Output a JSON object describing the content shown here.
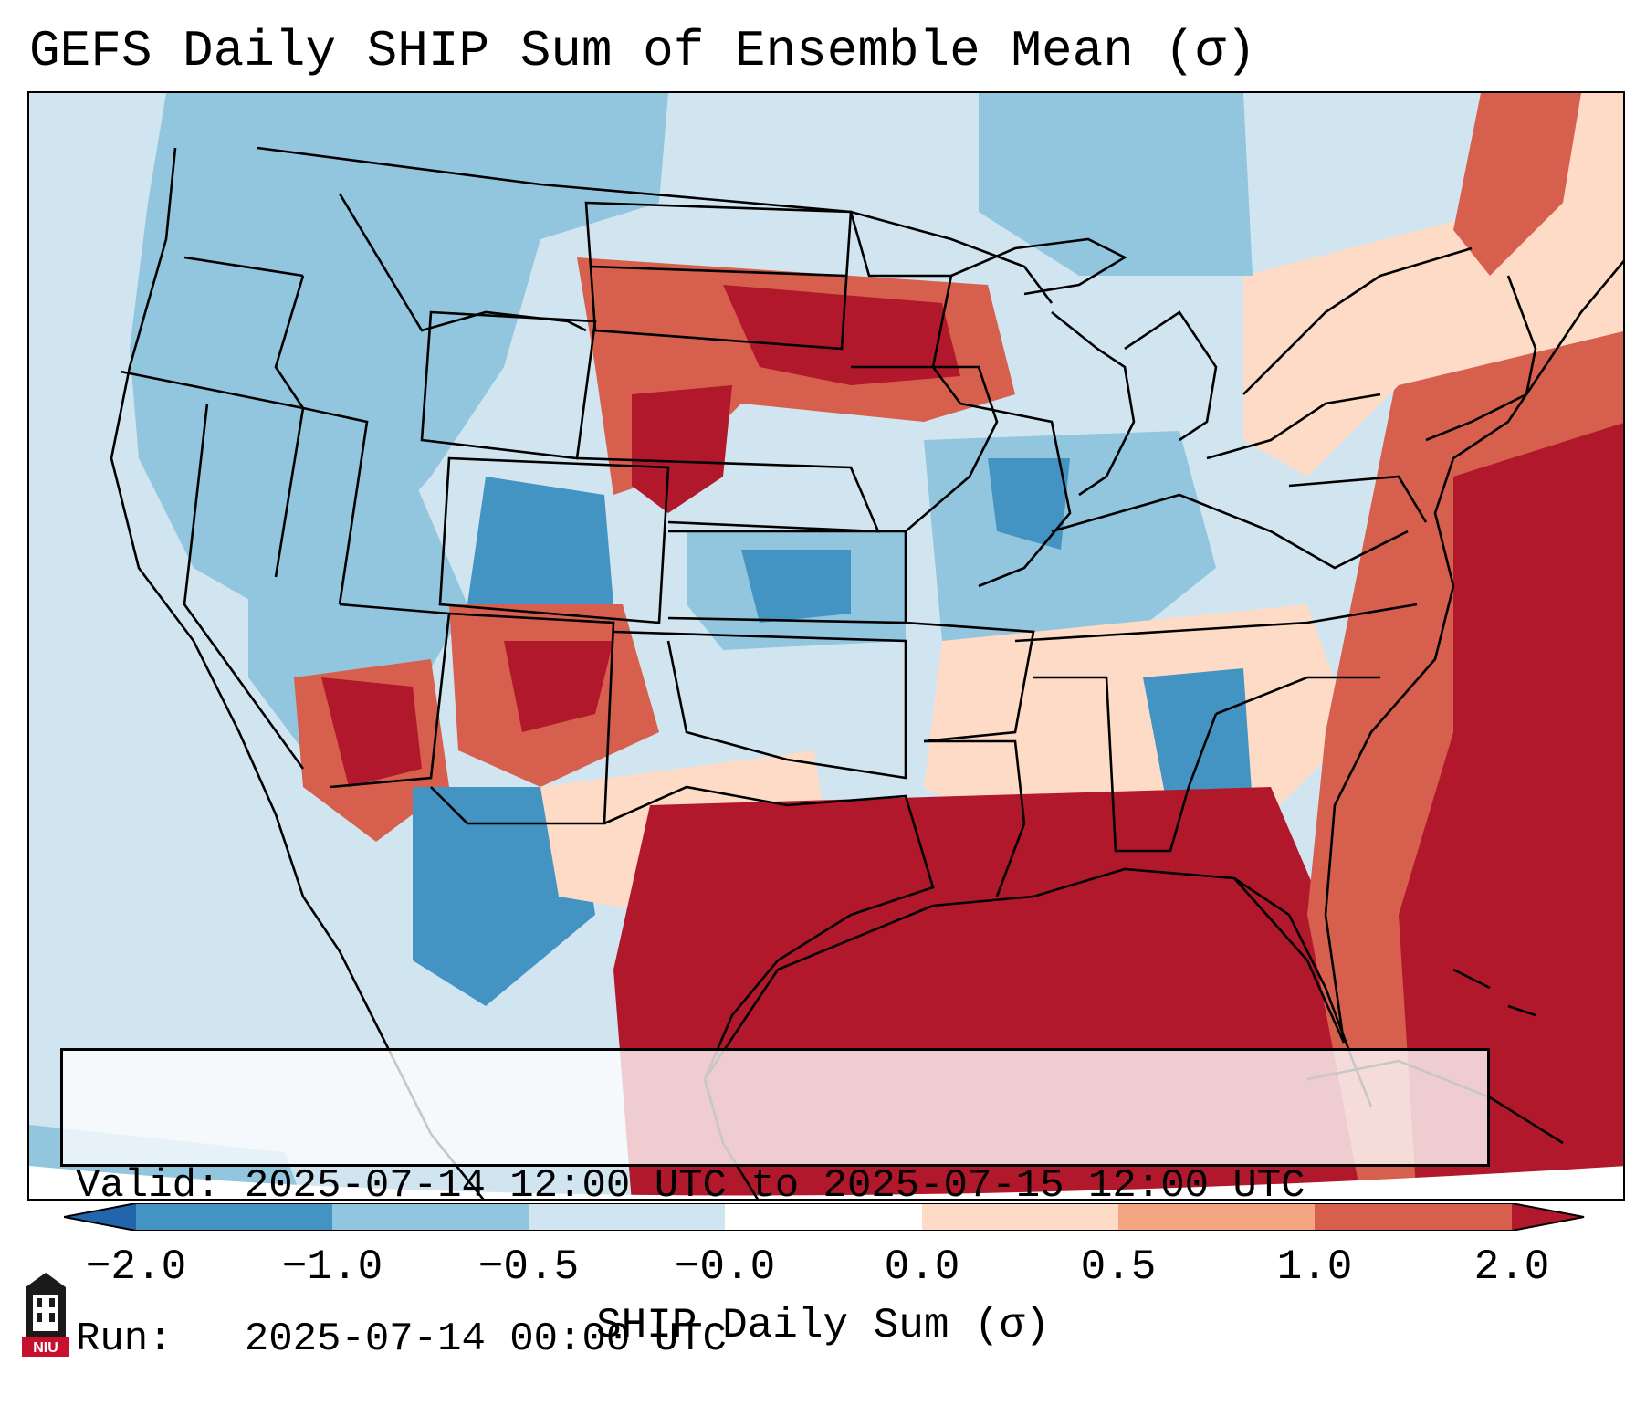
{
  "title": "GEFS Daily SHIP Sum of Ensemble Mean (σ)",
  "info": {
    "valid_line": "Valid: 2025-07-14 12:00 UTC to 2025-07-15 12:00 UTC",
    "run_line": "Run:   2025-07-14 00:00 UTC"
  },
  "colorbar": {
    "label": "SHIP Daily Sum (σ)",
    "ticks": [
      "−2.0",
      "−1.0",
      "−0.5",
      "−0.0",
      "0.0",
      "0.5",
      "1.0",
      "2.0"
    ],
    "colors": [
      "#4393c3",
      "#92c5de",
      "#d1e5f0",
      "#fddbc7",
      "#f4a582",
      "#d6604d"
    ],
    "under_color": "#2166ac",
    "over_color": "#b2182b"
  },
  "logo": {
    "text": "NIU",
    "icon": "niu-tower-logo"
  }
}
